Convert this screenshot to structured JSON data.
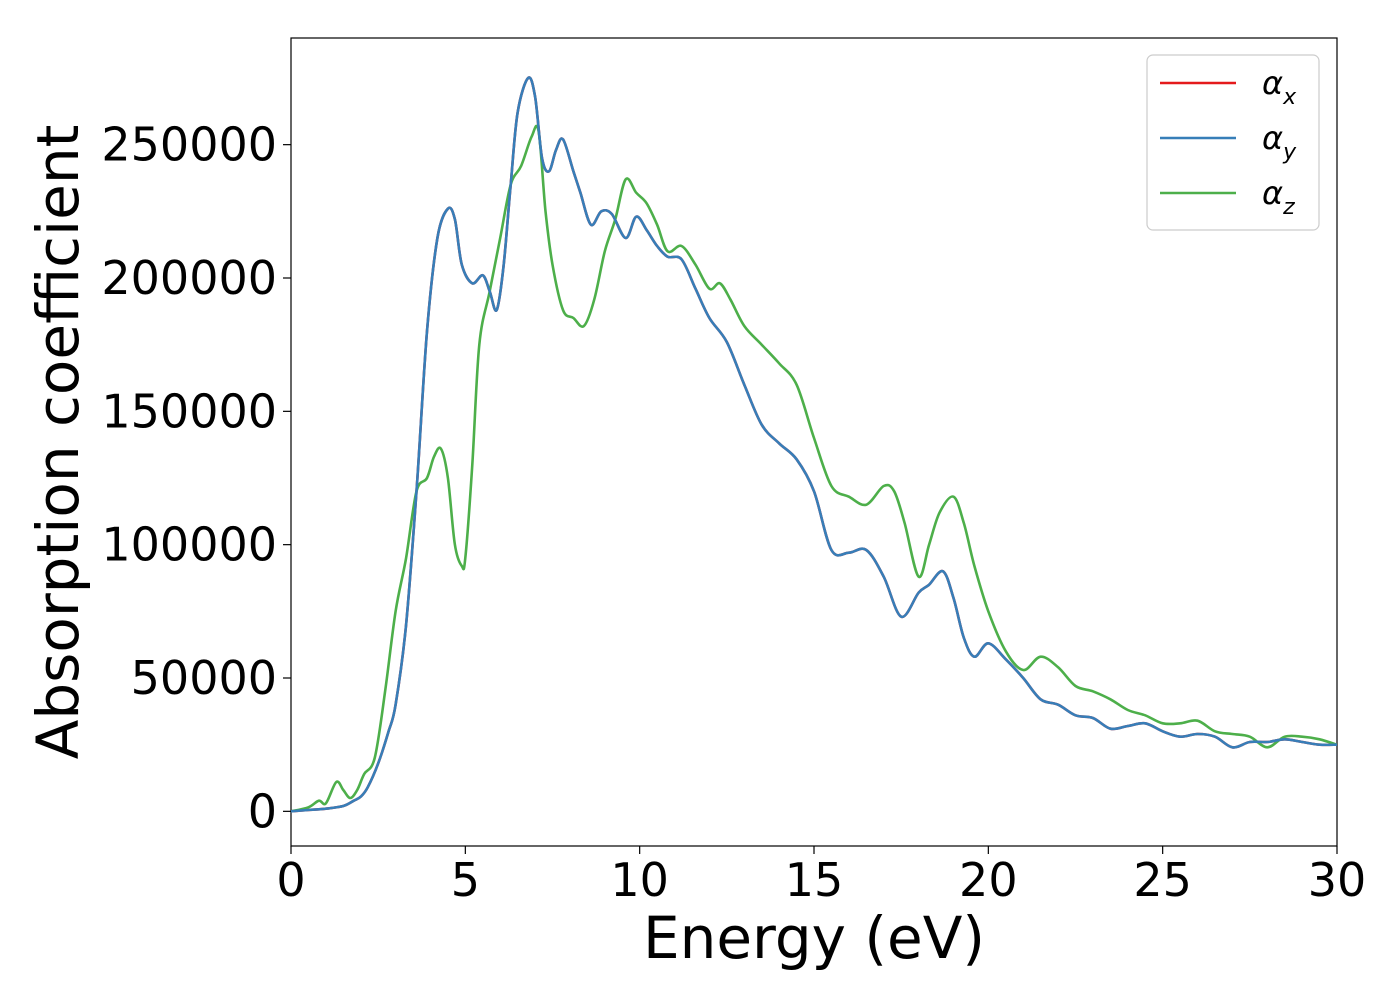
{
  "chart_data": {
    "type": "line",
    "title": "",
    "xlabel": "Energy (eV)",
    "ylabel": "Absorption coefficient",
    "xlim": [
      0,
      30
    ],
    "ylim": [
      -13000,
      290000
    ],
    "xticks": [
      0,
      5,
      10,
      15,
      20,
      25,
      30
    ],
    "xtick_labels": [
      "0",
      "5",
      "10",
      "15",
      "20",
      "25",
      "30"
    ],
    "yticks": [
      0,
      50000,
      100000,
      150000,
      200000,
      250000
    ],
    "ytick_labels": [
      "0",
      "50000",
      "100000",
      "150000",
      "200000",
      "250000"
    ],
    "grid": false,
    "legend_position": "top-right",
    "series": [
      {
        "name": "αx",
        "legend_base": "α",
        "legend_sub": "x",
        "color": "#e41a1c",
        "x": [
          0,
          0.5,
          1.0,
          1.5,
          1.8,
          2.0,
          2.2,
          2.5,
          2.8,
          3.0,
          3.3,
          3.6,
          3.9,
          4.2,
          4.5,
          4.7,
          4.9,
          5.2,
          5.5,
          5.7,
          5.9,
          6.1,
          6.3,
          6.5,
          6.8,
          7.0,
          7.2,
          7.4,
          7.6,
          7.8,
          8.1,
          8.3,
          8.6,
          8.9,
          9.2,
          9.6,
          9.9,
          10.2,
          10.5,
          10.8,
          11.2,
          11.6,
          12.0,
          12.5,
          13.0,
          13.5,
          14.0,
          14.5,
          15.0,
          15.5,
          16.0,
          16.5,
          17.0,
          17.5,
          18.0,
          18.3,
          18.7,
          19.0,
          19.3,
          19.6,
          20.0,
          20.5,
          21.0,
          21.5,
          22.0,
          22.5,
          23.0,
          23.5,
          24.0,
          24.5,
          25.0,
          25.5,
          26.0,
          26.5,
          27.0,
          27.5,
          28.0,
          28.5,
          29.0,
          29.5,
          30.0
        ],
        "values": [
          0,
          500,
          1000,
          2000,
          4000,
          5500,
          9000,
          18000,
          30000,
          40000,
          70000,
          120000,
          180000,
          215000,
          226000,
          222000,
          205000,
          198000,
          201000,
          195000,
          188000,
          205000,
          235000,
          262000,
          275000,
          268000,
          245000,
          240000,
          248000,
          252000,
          240000,
          232000,
          220000,
          225000,
          224000,
          215000,
          223000,
          218000,
          212000,
          208000,
          207000,
          196000,
          185000,
          176000,
          160000,
          145000,
          138000,
          132000,
          120000,
          98000,
          97000,
          98000,
          88000,
          73000,
          82000,
          85000,
          90000,
          80000,
          65000,
          58000,
          63000,
          57000,
          50000,
          42000,
          40000,
          36000,
          35000,
          31000,
          32000,
          33000,
          30000,
          28000,
          29000,
          28000,
          24000,
          26000,
          26000,
          27000,
          26000,
          25000,
          25000
        ],
        "hidden_under": "αy"
      },
      {
        "name": "αy",
        "legend_base": "α",
        "legend_sub": "y",
        "color": "#377eb8",
        "x": [
          0,
          0.5,
          1.0,
          1.5,
          1.8,
          2.0,
          2.2,
          2.5,
          2.8,
          3.0,
          3.3,
          3.6,
          3.9,
          4.2,
          4.5,
          4.7,
          4.9,
          5.2,
          5.5,
          5.7,
          5.9,
          6.1,
          6.3,
          6.5,
          6.8,
          7.0,
          7.2,
          7.4,
          7.6,
          7.8,
          8.1,
          8.3,
          8.6,
          8.9,
          9.2,
          9.6,
          9.9,
          10.2,
          10.5,
          10.8,
          11.2,
          11.6,
          12.0,
          12.5,
          13.0,
          13.5,
          14.0,
          14.5,
          15.0,
          15.5,
          16.0,
          16.5,
          17.0,
          17.5,
          18.0,
          18.3,
          18.7,
          19.0,
          19.3,
          19.6,
          20.0,
          20.5,
          21.0,
          21.5,
          22.0,
          22.5,
          23.0,
          23.5,
          24.0,
          24.5,
          25.0,
          25.5,
          26.0,
          26.5,
          27.0,
          27.5,
          28.0,
          28.5,
          29.0,
          29.5,
          30.0
        ],
        "values": [
          0,
          500,
          1000,
          2000,
          4000,
          5500,
          9000,
          18000,
          30000,
          40000,
          70000,
          120000,
          180000,
          215000,
          226000,
          222000,
          205000,
          198000,
          201000,
          195000,
          188000,
          205000,
          235000,
          262000,
          275000,
          268000,
          245000,
          240000,
          248000,
          252000,
          240000,
          232000,
          220000,
          225000,
          224000,
          215000,
          223000,
          218000,
          212000,
          208000,
          207000,
          196000,
          185000,
          176000,
          160000,
          145000,
          138000,
          132000,
          120000,
          98000,
          97000,
          98000,
          88000,
          73000,
          82000,
          85000,
          90000,
          80000,
          65000,
          58000,
          63000,
          57000,
          50000,
          42000,
          40000,
          36000,
          35000,
          31000,
          32000,
          33000,
          30000,
          28000,
          29000,
          28000,
          24000,
          26000,
          26000,
          27000,
          26000,
          25000,
          25000
        ]
      },
      {
        "name": "αz",
        "legend_base": "α",
        "legend_sub": "z",
        "color": "#4daf4a",
        "x": [
          0,
          0.5,
          0.8,
          1.0,
          1.3,
          1.5,
          1.7,
          1.9,
          2.1,
          2.4,
          2.7,
          3.0,
          3.3,
          3.6,
          3.9,
          4.1,
          4.3,
          4.5,
          4.7,
          4.9,
          5.0,
          5.2,
          5.4,
          5.7,
          6.0,
          6.3,
          6.6,
          6.9,
          7.1,
          7.3,
          7.5,
          7.8,
          8.1,
          8.4,
          8.7,
          9.0,
          9.3,
          9.6,
          9.9,
          10.2,
          10.5,
          10.8,
          11.2,
          11.6,
          12.0,
          12.3,
          12.6,
          13.0,
          13.5,
          14.0,
          14.5,
          15.0,
          15.5,
          16.0,
          16.5,
          17.0,
          17.3,
          17.6,
          18.0,
          18.3,
          18.6,
          19.0,
          19.3,
          19.6,
          20.0,
          20.5,
          21.0,
          21.5,
          22.0,
          22.5,
          23.0,
          23.5,
          24.0,
          24.5,
          25.0,
          25.5,
          26.0,
          26.5,
          27.0,
          27.5,
          28.0,
          28.5,
          29.0,
          29.5,
          30.0
        ],
        "values": [
          0,
          1500,
          4000,
          3000,
          11000,
          8000,
          5000,
          8000,
          14000,
          20000,
          45000,
          75000,
          95000,
          120000,
          125000,
          133000,
          136000,
          125000,
          100000,
          92000,
          95000,
          130000,
          175000,
          195000,
          215000,
          235000,
          242000,
          253000,
          255000,
          225000,
          205000,
          188000,
          185000,
          182000,
          192000,
          210000,
          222000,
          237000,
          232000,
          228000,
          220000,
          210000,
          212000,
          205000,
          196000,
          198000,
          192000,
          182000,
          175000,
          168000,
          160000,
          140000,
          122000,
          118000,
          115000,
          122000,
          120000,
          108000,
          88000,
          100000,
          112000,
          118000,
          108000,
          92000,
          75000,
          60000,
          53000,
          58000,
          54000,
          47000,
          45000,
          42000,
          38000,
          36000,
          33000,
          33000,
          34000,
          30000,
          29000,
          28000,
          24000,
          28000,
          28000,
          27000,
          25000
        ]
      }
    ]
  }
}
